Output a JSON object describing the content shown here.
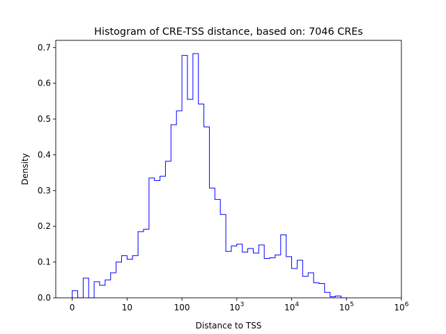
{
  "chart_data": {
    "type": "histogram",
    "title": "Histogram of CRE-TSS distance, based on: 7046 CREs",
    "xlabel": "Distance to TSS",
    "ylabel": "Density",
    "x_scale": "symlog",
    "xlim": [
      -0.3,
      6.0
    ],
    "ylim": [
      0,
      0.72
    ],
    "grid": false,
    "legend": "none",
    "series_color": "#0000ff",
    "x_ticks": [
      {
        "value": 0,
        "base": "0",
        "exp": ""
      },
      {
        "value": 1,
        "base": "10",
        "exp": ""
      },
      {
        "value": 2,
        "base": "100",
        "exp": ""
      },
      {
        "value": 3,
        "base": "10",
        "exp": "3"
      },
      {
        "value": 4,
        "base": "10",
        "exp": "4"
      },
      {
        "value": 5,
        "base": "10",
        "exp": "5"
      },
      {
        "value": 6,
        "base": "10",
        "exp": "6"
      }
    ],
    "y_ticks": [
      {
        "value": 0.0,
        "label": "0.0"
      },
      {
        "value": 0.1,
        "label": "0.1"
      },
      {
        "value": 0.2,
        "label": "0.2"
      },
      {
        "value": 0.3,
        "label": "0.3"
      },
      {
        "value": 0.4,
        "label": "0.4"
      },
      {
        "value": 0.5,
        "label": "0.5"
      },
      {
        "value": 0.6,
        "label": "0.6"
      },
      {
        "value": 0.7,
        "label": "0.7"
      }
    ],
    "bin_start": 0.0,
    "bin_width": 0.1,
    "densities": [
      0.02,
      0.0,
      0.055,
      0.0,
      0.045,
      0.035,
      0.05,
      0.07,
      0.1,
      0.118,
      0.108,
      0.118,
      0.185,
      0.192,
      0.335,
      0.328,
      0.34,
      0.382,
      0.484,
      0.523,
      0.678,
      0.555,
      0.683,
      0.542,
      0.478,
      0.307,
      0.275,
      0.233,
      0.13,
      0.145,
      0.15,
      0.128,
      0.138,
      0.125,
      0.148,
      0.11,
      0.112,
      0.12,
      0.176,
      0.115,
      0.082,
      0.105,
      0.06,
      0.07,
      0.042,
      0.04,
      0.015,
      0.003,
      0.005,
      0.0
    ]
  }
}
